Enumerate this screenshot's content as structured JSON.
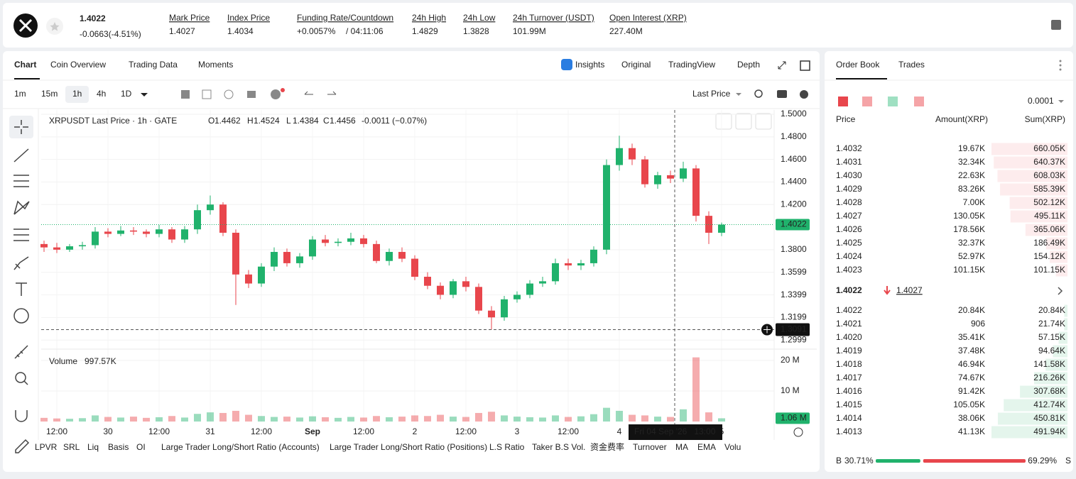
{
  "header": {
    "price": "1.4022",
    "change": "-0.0663(-4.51%)",
    "stats": [
      {
        "label": "Mark Price",
        "value": "1.4027"
      },
      {
        "label": "Index Price",
        "value": "1.4034"
      },
      {
        "label": "Funding Rate/Countdown",
        "value": "+0.0057%",
        "extra": "/ 04:11:06"
      },
      {
        "label": "24h High",
        "value": "1.4829"
      },
      {
        "label": "24h Low",
        "value": "1.3828"
      },
      {
        "label": "24h Turnover (USDT)",
        "value": "101.99M"
      },
      {
        "label": "Open Interest (XRP)",
        "value": "227.40M"
      }
    ]
  },
  "tabs": [
    "Chart",
    "Coin Overview",
    "Trading Data",
    "Moments"
  ],
  "views": [
    "Insights",
    "Original",
    "TradingView",
    "Depth"
  ],
  "intervals": [
    "1m",
    "15m",
    "1h",
    "4h",
    "1D"
  ],
  "price_source": "Last Price",
  "indicators": [
    "LPVR",
    "SRL",
    "Liq",
    "Basis",
    "OI",
    "Large Trader Long/Short Ratio (Accounts)",
    "Large Trader Long/Short Ratio (Positions)",
    "L.S Ratio",
    "Taker B.S Vol.",
    "资金费率",
    "Turnover",
    "MA",
    "EMA",
    "Volu"
  ],
  "chart_data": {
    "type": "candlestick",
    "title": "XRPUSDT Last Price · 1h · GATE",
    "ohlc_legend": [
      {
        "key": "O",
        "value": "1.4462"
      },
      {
        "key": "H",
        "value": "1.4524"
      },
      {
        "key": "L",
        "value": "1.4384"
      },
      {
        "key": "C",
        "value": "1.4456"
      }
    ],
    "legend_change": "-0.0011 (−0.07%)",
    "volume_title": "Volume",
    "volume_value": "997.57K",
    "categories": [
      null,
      "12:00",
      null,
      null,
      null,
      "30",
      null,
      null,
      null,
      "12:00",
      null,
      null,
      null,
      "31",
      null,
      null,
      null,
      "12:00",
      null,
      null,
      null,
      "Sep",
      null,
      null,
      null,
      "12:00",
      null,
      null,
      null,
      "2",
      null,
      null,
      null,
      "12:00",
      null,
      null,
      null,
      "3",
      null,
      null,
      null,
      "12:00",
      null,
      null,
      null,
      "4",
      null,
      null,
      null,
      null,
      null,
      null,
      null,
      "5"
    ],
    "open": [
      1.385,
      1.382,
      1.38,
      1.383,
      1.384,
      1.396,
      1.394,
      1.397,
      1.396,
      1.394,
      1.398,
      1.389,
      1.398,
      1.415,
      1.42,
      1.395,
      1.358,
      1.35,
      1.365,
      1.378,
      1.368,
      1.374,
      1.389,
      1.386,
      1.387,
      1.39,
      1.385,
      1.37,
      1.378,
      1.372,
      1.356,
      1.348,
      1.34,
      1.352,
      1.347,
      1.326,
      1.32,
      1.336,
      1.34,
      1.35,
      1.352,
      1.368,
      1.366,
      1.368,
      1.38,
      1.455,
      1.47,
      1.46,
      1.438,
      1.446,
      1.443,
      1.452,
      1.41,
      1.395
    ],
    "high": [
      1.388,
      1.386,
      1.385,
      1.387,
      1.4,
      1.399,
      1.401,
      1.4,
      1.398,
      1.402,
      1.4,
      1.401,
      1.42,
      1.428,
      1.422,
      1.398,
      1.362,
      1.368,
      1.382,
      1.381,
      1.377,
      1.392,
      1.393,
      1.39,
      1.395,
      1.393,
      1.388,
      1.381,
      1.382,
      1.375,
      1.36,
      1.351,
      1.354,
      1.356,
      1.35,
      1.33,
      1.339,
      1.343,
      1.353,
      1.356,
      1.372,
      1.372,
      1.371,
      1.383,
      1.46,
      1.481,
      1.474,
      1.463,
      1.449,
      1.45,
      1.458,
      1.455,
      1.414,
      1.404
    ],
    "low": [
      1.378,
      1.377,
      1.378,
      1.38,
      1.381,
      1.391,
      1.392,
      1.393,
      1.391,
      1.391,
      1.386,
      1.386,
      1.394,
      1.411,
      1.392,
      1.331,
      1.346,
      1.347,
      1.361,
      1.365,
      1.364,
      1.371,
      1.383,
      1.383,
      1.384,
      1.382,
      1.368,
      1.366,
      1.369,
      1.353,
      1.345,
      1.336,
      1.337,
      1.343,
      1.323,
      1.3091,
      1.317,
      1.333,
      1.337,
      1.347,
      1.349,
      1.362,
      1.362,
      1.365,
      1.376,
      1.45,
      1.455,
      1.435,
      1.434,
      1.439,
      1.44,
      1.405,
      1.385,
      1.392
    ],
    "close": [
      1.382,
      1.38,
      1.383,
      1.384,
      1.396,
      1.394,
      1.397,
      1.396,
      1.394,
      1.398,
      1.389,
      1.398,
      1.415,
      1.42,
      1.395,
      1.358,
      1.35,
      1.365,
      1.378,
      1.368,
      1.374,
      1.389,
      1.386,
      1.387,
      1.39,
      1.385,
      1.37,
      1.378,
      1.372,
      1.356,
      1.348,
      1.34,
      1.352,
      1.347,
      1.326,
      1.32,
      1.336,
      1.34,
      1.35,
      1.352,
      1.368,
      1.366,
      1.368,
      1.38,
      1.455,
      1.47,
      1.46,
      1.438,
      1.446,
      1.443,
      1.452,
      1.41,
      1.395,
      1.4022
    ],
    "volume": [
      1200000,
      1000000,
      900000,
      1100000,
      2000000,
      1500000,
      1300000,
      1600000,
      1200000,
      1400000,
      1800000,
      1300000,
      2500000,
      3000000,
      2800000,
      3500000,
      2200000,
      1800000,
      1500000,
      1600000,
      1300000,
      1700000,
      1400000,
      1200000,
      1500000,
      1300000,
      1800000,
      1400000,
      1600000,
      2000000,
      1800000,
      2200000,
      1600000,
      1500000,
      2800000,
      3200000,
      2000000,
      1600000,
      1400000,
      1300000,
      2000000,
      1500000,
      1700000,
      2400000,
      4500000,
      3500000,
      2200000,
      2000000,
      1600000,
      1500000,
      4000000,
      21000000,
      3000000,
      1060000
    ],
    "up_color": "#20b26c",
    "down_color": "#e8464c",
    "ylim": [
      1.2931,
      1.5038
    ],
    "yticks": [
      {
        "value": 1.5,
        "label": "1.5000"
      },
      {
        "value": 1.48,
        "label": "1.4800"
      },
      {
        "value": 1.46,
        "label": "1.4600"
      },
      {
        "value": 1.44,
        "label": "1.4400"
      },
      {
        "value": 1.42,
        "label": "1.4200"
      },
      {
        "value": 1.38,
        "label": "1.3800"
      },
      {
        "value": 1.3599,
        "label": "1.3599"
      },
      {
        "value": 1.3399,
        "label": "1.3399"
      },
      {
        "value": 1.3199,
        "label": "1.3199"
      },
      {
        "value": 1.2999,
        "label": "1.2999"
      }
    ],
    "y2lim": [
      0,
      23000000
    ],
    "y2ticks": [
      {
        "value": 20000000,
        "label": "20 M"
      },
      {
        "value": 10000000,
        "label": "10 M"
      }
    ],
    "last_price": {
      "value": 1.4022,
      "label": "1.4022"
    },
    "last_volume": {
      "value": 1060000,
      "label": "1.06 M"
    },
    "crosshair_price": {
      "value": 1.3091,
      "label": "1.3091"
    },
    "crosshair_label": "Fri 04 Sep '26   13:00",
    "grid": true
  },
  "order_book": {
    "tabs": [
      "Order Book",
      "Trades"
    ],
    "precision": "0.0001",
    "columns": [
      "Price",
      "Amount(XRP)",
      "Sum(XRP)"
    ],
    "asks": [
      {
        "price": "1.4032",
        "amount": "19.67K",
        "sum": {
          "value": 660050,
          "label": "660.05K"
        }
      },
      {
        "price": "1.4031",
        "amount": "32.34K",
        "sum": {
          "value": 640370,
          "label": "640.37K"
        }
      },
      {
        "price": "1.4030",
        "amount": "22.63K",
        "sum": {
          "value": 608030,
          "label": "608.03K"
        }
      },
      {
        "price": "1.4029",
        "amount": "83.26K",
        "sum": {
          "value": 585390,
          "label": "585.39K"
        }
      },
      {
        "price": "1.4028",
        "amount": "7.00K",
        "sum": {
          "value": 502120,
          "label": "502.12K"
        }
      },
      {
        "price": "1.4027",
        "amount": "130.05K",
        "sum": {
          "value": 495110,
          "label": "495.11K"
        }
      },
      {
        "price": "1.4026",
        "amount": "178.56K",
        "sum": {
          "value": 365060,
          "label": "365.06K"
        }
      },
      {
        "price": "1.4025",
        "amount": "32.37K",
        "sum": {
          "value": 186490,
          "label": "186.49K"
        }
      },
      {
        "price": "1.4024",
        "amount": "52.97K",
        "sum": {
          "value": 154120,
          "label": "154.12K"
        }
      },
      {
        "price": "1.4023",
        "amount": "101.15K",
        "sum": {
          "value": 101150,
          "label": "101.15K"
        }
      }
    ],
    "mid_price": "1.4022",
    "mark_price": "1.4027",
    "bids": [
      {
        "price": "1.4022",
        "amount": "20.84K",
        "sum": {
          "value": 20840,
          "label": "20.84K"
        }
      },
      {
        "price": "1.4021",
        "amount": "906",
        "sum": {
          "value": 21740,
          "label": "21.74K"
        }
      },
      {
        "price": "1.4020",
        "amount": "35.41K",
        "sum": {
          "value": 57150,
          "label": "57.15K"
        }
      },
      {
        "price": "1.4019",
        "amount": "37.48K",
        "sum": {
          "value": 94640,
          "label": "94.64K"
        }
      },
      {
        "price": "1.4018",
        "amount": "46.94K",
        "sum": {
          "value": 141580,
          "label": "141.58K"
        }
      },
      {
        "price": "1.4017",
        "amount": "74.67K",
        "sum": {
          "value": 216260,
          "label": "216.26K"
        }
      },
      {
        "price": "1.4016",
        "amount": "91.42K",
        "sum": {
          "value": 307680,
          "label": "307.68K"
        }
      },
      {
        "price": "1.4015",
        "amount": "105.05K",
        "sum": {
          "value": 412740,
          "label": "412.74K"
        }
      },
      {
        "price": "1.4014",
        "amount": "38.06K",
        "sum": {
          "value": 450810,
          "label": "450.81K"
        }
      },
      {
        "price": "1.4013",
        "amount": "41.13K",
        "sum": {
          "value": 491940,
          "label": "491.94K"
        }
      }
    ],
    "buy_key": "B",
    "buy": {
      "value": 30.71,
      "label": "30.71%"
    },
    "sell": {
      "value": 69.29,
      "label": "69.29%"
    },
    "sell_key": "S"
  }
}
